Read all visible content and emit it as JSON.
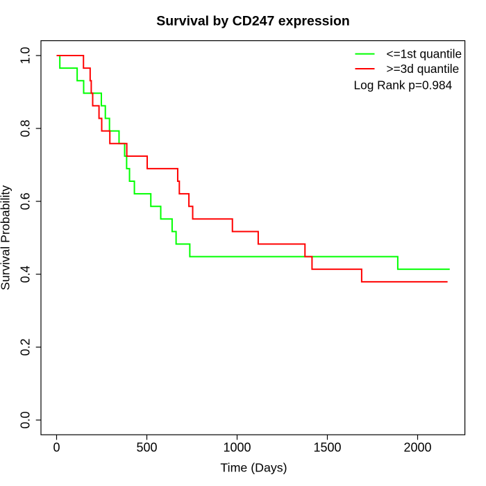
{
  "title": "Survival by CD247 expression",
  "axes": {
    "x_label": "Time (Days)",
    "y_label": "Survival Probability",
    "x_ticks": [
      0,
      500,
      1000,
      1500,
      2000
    ],
    "y_ticks": [
      "0.0",
      "0.2",
      "0.4",
      "0.6",
      "0.8",
      "1.0"
    ]
  },
  "legend": {
    "entries": [
      {
        "label": "<=1st quantile",
        "color": "#00FF00"
      },
      {
        "label": ">=3d quantile",
        "color": "#FF0000"
      }
    ],
    "pvalue_text": "Log Rank p=0.984"
  },
  "chart_data": {
    "type": "line",
    "subtype": "kaplan-meier-step",
    "title": "Survival by CD247 expression",
    "xlabel": "Time (Days)",
    "ylabel": "Survival Probability",
    "xlim": [
      0,
      2178
    ],
    "ylim": [
      0.0,
      1.0
    ],
    "x_ticks": [
      0,
      500,
      1000,
      1500,
      2000
    ],
    "y_ticks": [
      0.0,
      0.2,
      0.4,
      0.6,
      0.8,
      1.0
    ],
    "grid": false,
    "legend_position": "topright",
    "annotation": "Log Rank p=0.984",
    "series": [
      {
        "name": "<=1st quantile",
        "color": "#00FF00",
        "line_width": 2,
        "end_time": 2178,
        "steps": [
          [
            0,
            1.0
          ],
          [
            18,
            0.9655
          ],
          [
            114,
            0.931
          ],
          [
            150,
            0.8966
          ],
          [
            248,
            0.8621
          ],
          [
            270,
            0.8276
          ],
          [
            293,
            0.7931
          ],
          [
            346,
            0.7586
          ],
          [
            377,
            0.7241
          ],
          [
            388,
            0.6897
          ],
          [
            404,
            0.6552
          ],
          [
            431,
            0.6207
          ],
          [
            522,
            0.5862
          ],
          [
            577,
            0.5517
          ],
          [
            640,
            0.5172
          ],
          [
            662,
            0.4828
          ],
          [
            738,
            0.4483
          ],
          [
            1890,
            0.4138
          ]
        ]
      },
      {
        "name": ">=3d quantile",
        "color": "#FF0000",
        "line_width": 2,
        "end_time": 2166,
        "steps": [
          [
            0,
            1.0
          ],
          [
            149,
            0.9655
          ],
          [
            186,
            0.931
          ],
          [
            192,
            0.8966
          ],
          [
            200,
            0.8621
          ],
          [
            235,
            0.8276
          ],
          [
            250,
            0.7931
          ],
          [
            295,
            0.7586
          ],
          [
            389,
            0.7241
          ],
          [
            502,
            0.6897
          ],
          [
            671,
            0.6552
          ],
          [
            680,
            0.6207
          ],
          [
            733,
            0.5862
          ],
          [
            754,
            0.5517
          ],
          [
            974,
            0.5172
          ],
          [
            1117,
            0.4828
          ],
          [
            1376,
            0.4483
          ],
          [
            1415,
            0.4138
          ],
          [
            1690,
            0.3793
          ]
        ]
      }
    ]
  }
}
